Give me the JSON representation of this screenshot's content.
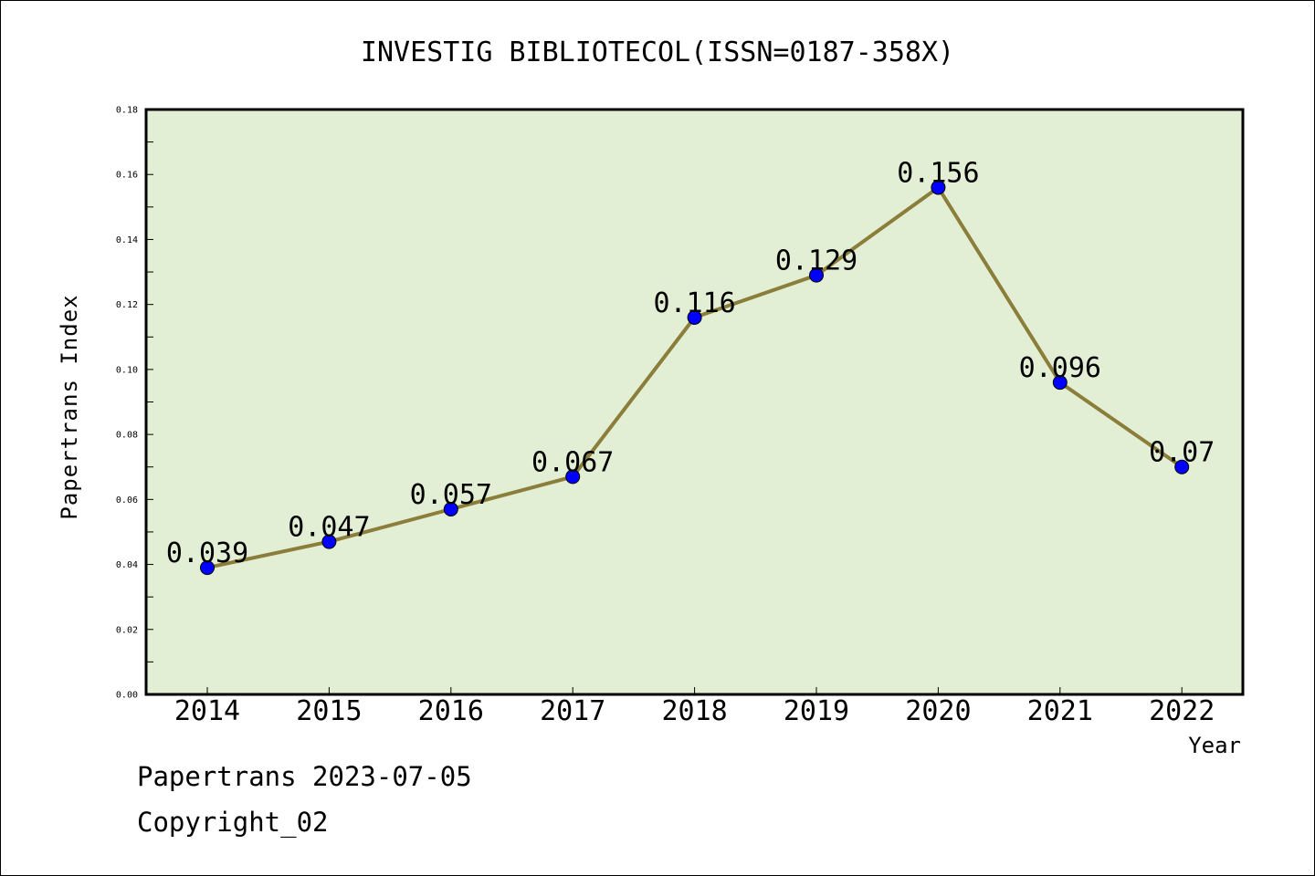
{
  "chart_data": {
    "type": "line",
    "title": "INVESTIG BIBLIOTECOL(ISSN=0187-358X)",
    "xlabel": "Year",
    "ylabel": "Papertrans Index",
    "categories": [
      "2014",
      "2015",
      "2016",
      "2017",
      "2018",
      "2019",
      "2020",
      "2021",
      "2022"
    ],
    "series": [
      {
        "values": [
          0.039,
          0.047,
          0.057,
          0.067,
          0.116,
          0.129,
          0.156,
          0.096,
          0.07
        ],
        "labels": [
          "0.039",
          "0.047",
          "0.057",
          "0.067",
          "0.116",
          "0.129",
          "0.156",
          "0.096",
          "0.07"
        ],
        "line_color": "#8b7d3a",
        "marker_color": "#0000ff"
      }
    ],
    "ylim": [
      0,
      0.18
    ],
    "yticks": [
      "0.00",
      "0.02",
      "0.04",
      "0.06",
      "0.08",
      "0.10",
      "0.12",
      "0.14",
      "0.16",
      "0.18"
    ],
    "grid": false,
    "plot_background": "#e2efd4"
  },
  "footer": {
    "line1": "Papertrans 2023-07-05",
    "line2": "Copyright_02"
  }
}
